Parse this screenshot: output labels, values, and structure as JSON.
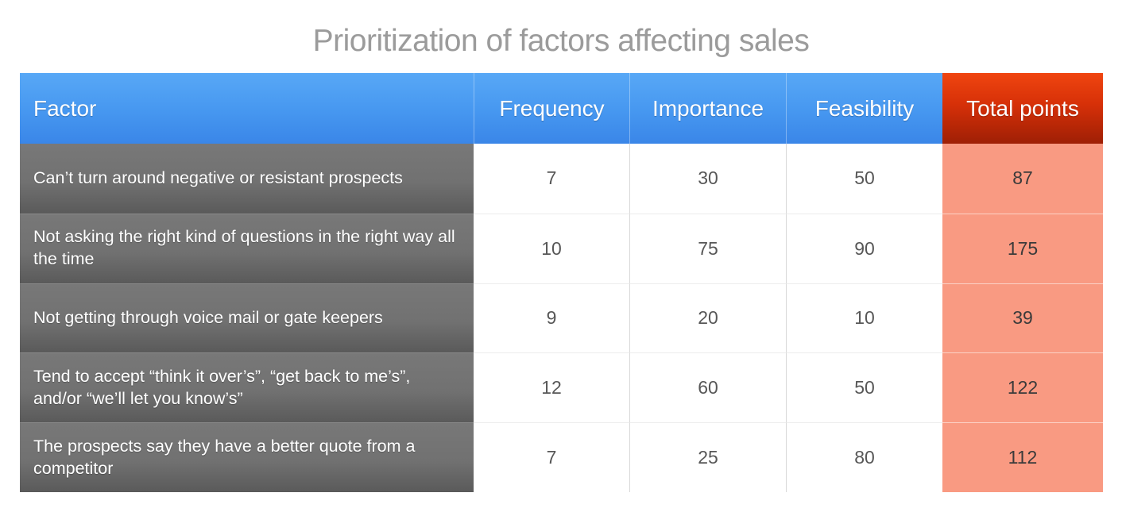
{
  "title": "Prioritization of factors affecting sales",
  "colors": {
    "header_blue_top": "#58a8f6",
    "header_blue_bottom": "#3a86e8",
    "header_red_top": "#f04510",
    "header_red_bottom": "#9e1f05",
    "factor_gray": "#6e6e6e",
    "total_salmon": "#f99a82",
    "title_gray": "#9b9b9b",
    "number_text": "#575757"
  },
  "table": {
    "columns": [
      "Factor",
      "Frequency",
      "Importance",
      "Feasibility",
      "Total points"
    ],
    "rows": [
      {
        "factor": "Can’t turn around negative or resistant prospects",
        "frequency": "7",
        "importance": "30",
        "feasibility": "50",
        "total": "87"
      },
      {
        "factor": "Not asking the right kind of questions in the right way all the time",
        "frequency": "10",
        "importance": "75",
        "feasibility": "90",
        "total": "175"
      },
      {
        "factor": "Not getting through voice mail or gate keepers",
        "frequency": "9",
        "importance": "20",
        "feasibility": "10",
        "total": "39"
      },
      {
        "factor": "Tend to accept “think it over’s”, “get back to me’s”, and/or “we’ll let you know’s”",
        "frequency": "12",
        "importance": "60",
        "feasibility": "50",
        "total": "122"
      },
      {
        "factor": "The prospects say they have a better quote from a competitor",
        "frequency": "7",
        "importance": "25",
        "feasibility": "80",
        "total": "112"
      }
    ]
  },
  "chart_data": {
    "type": "table",
    "title": "Prioritization of factors affecting sales",
    "columns": [
      "Factor",
      "Frequency",
      "Importance",
      "Feasibility",
      "Total points"
    ],
    "rows": [
      [
        "Can’t turn around negative or resistant prospects",
        7,
        30,
        50,
        87
      ],
      [
        "Not asking the right kind of questions in the right way all the time",
        10,
        75,
        90,
        175
      ],
      [
        "Not getting through voice mail or gate keepers",
        9,
        20,
        10,
        39
      ],
      [
        "Tend to accept “think it over’s”, “get back to me’s”, and/or “we’ll let you know’s”",
        12,
        60,
        50,
        122
      ],
      [
        "The prospects say they have a better quote from a competitor",
        7,
        25,
        80,
        112
      ]
    ]
  }
}
